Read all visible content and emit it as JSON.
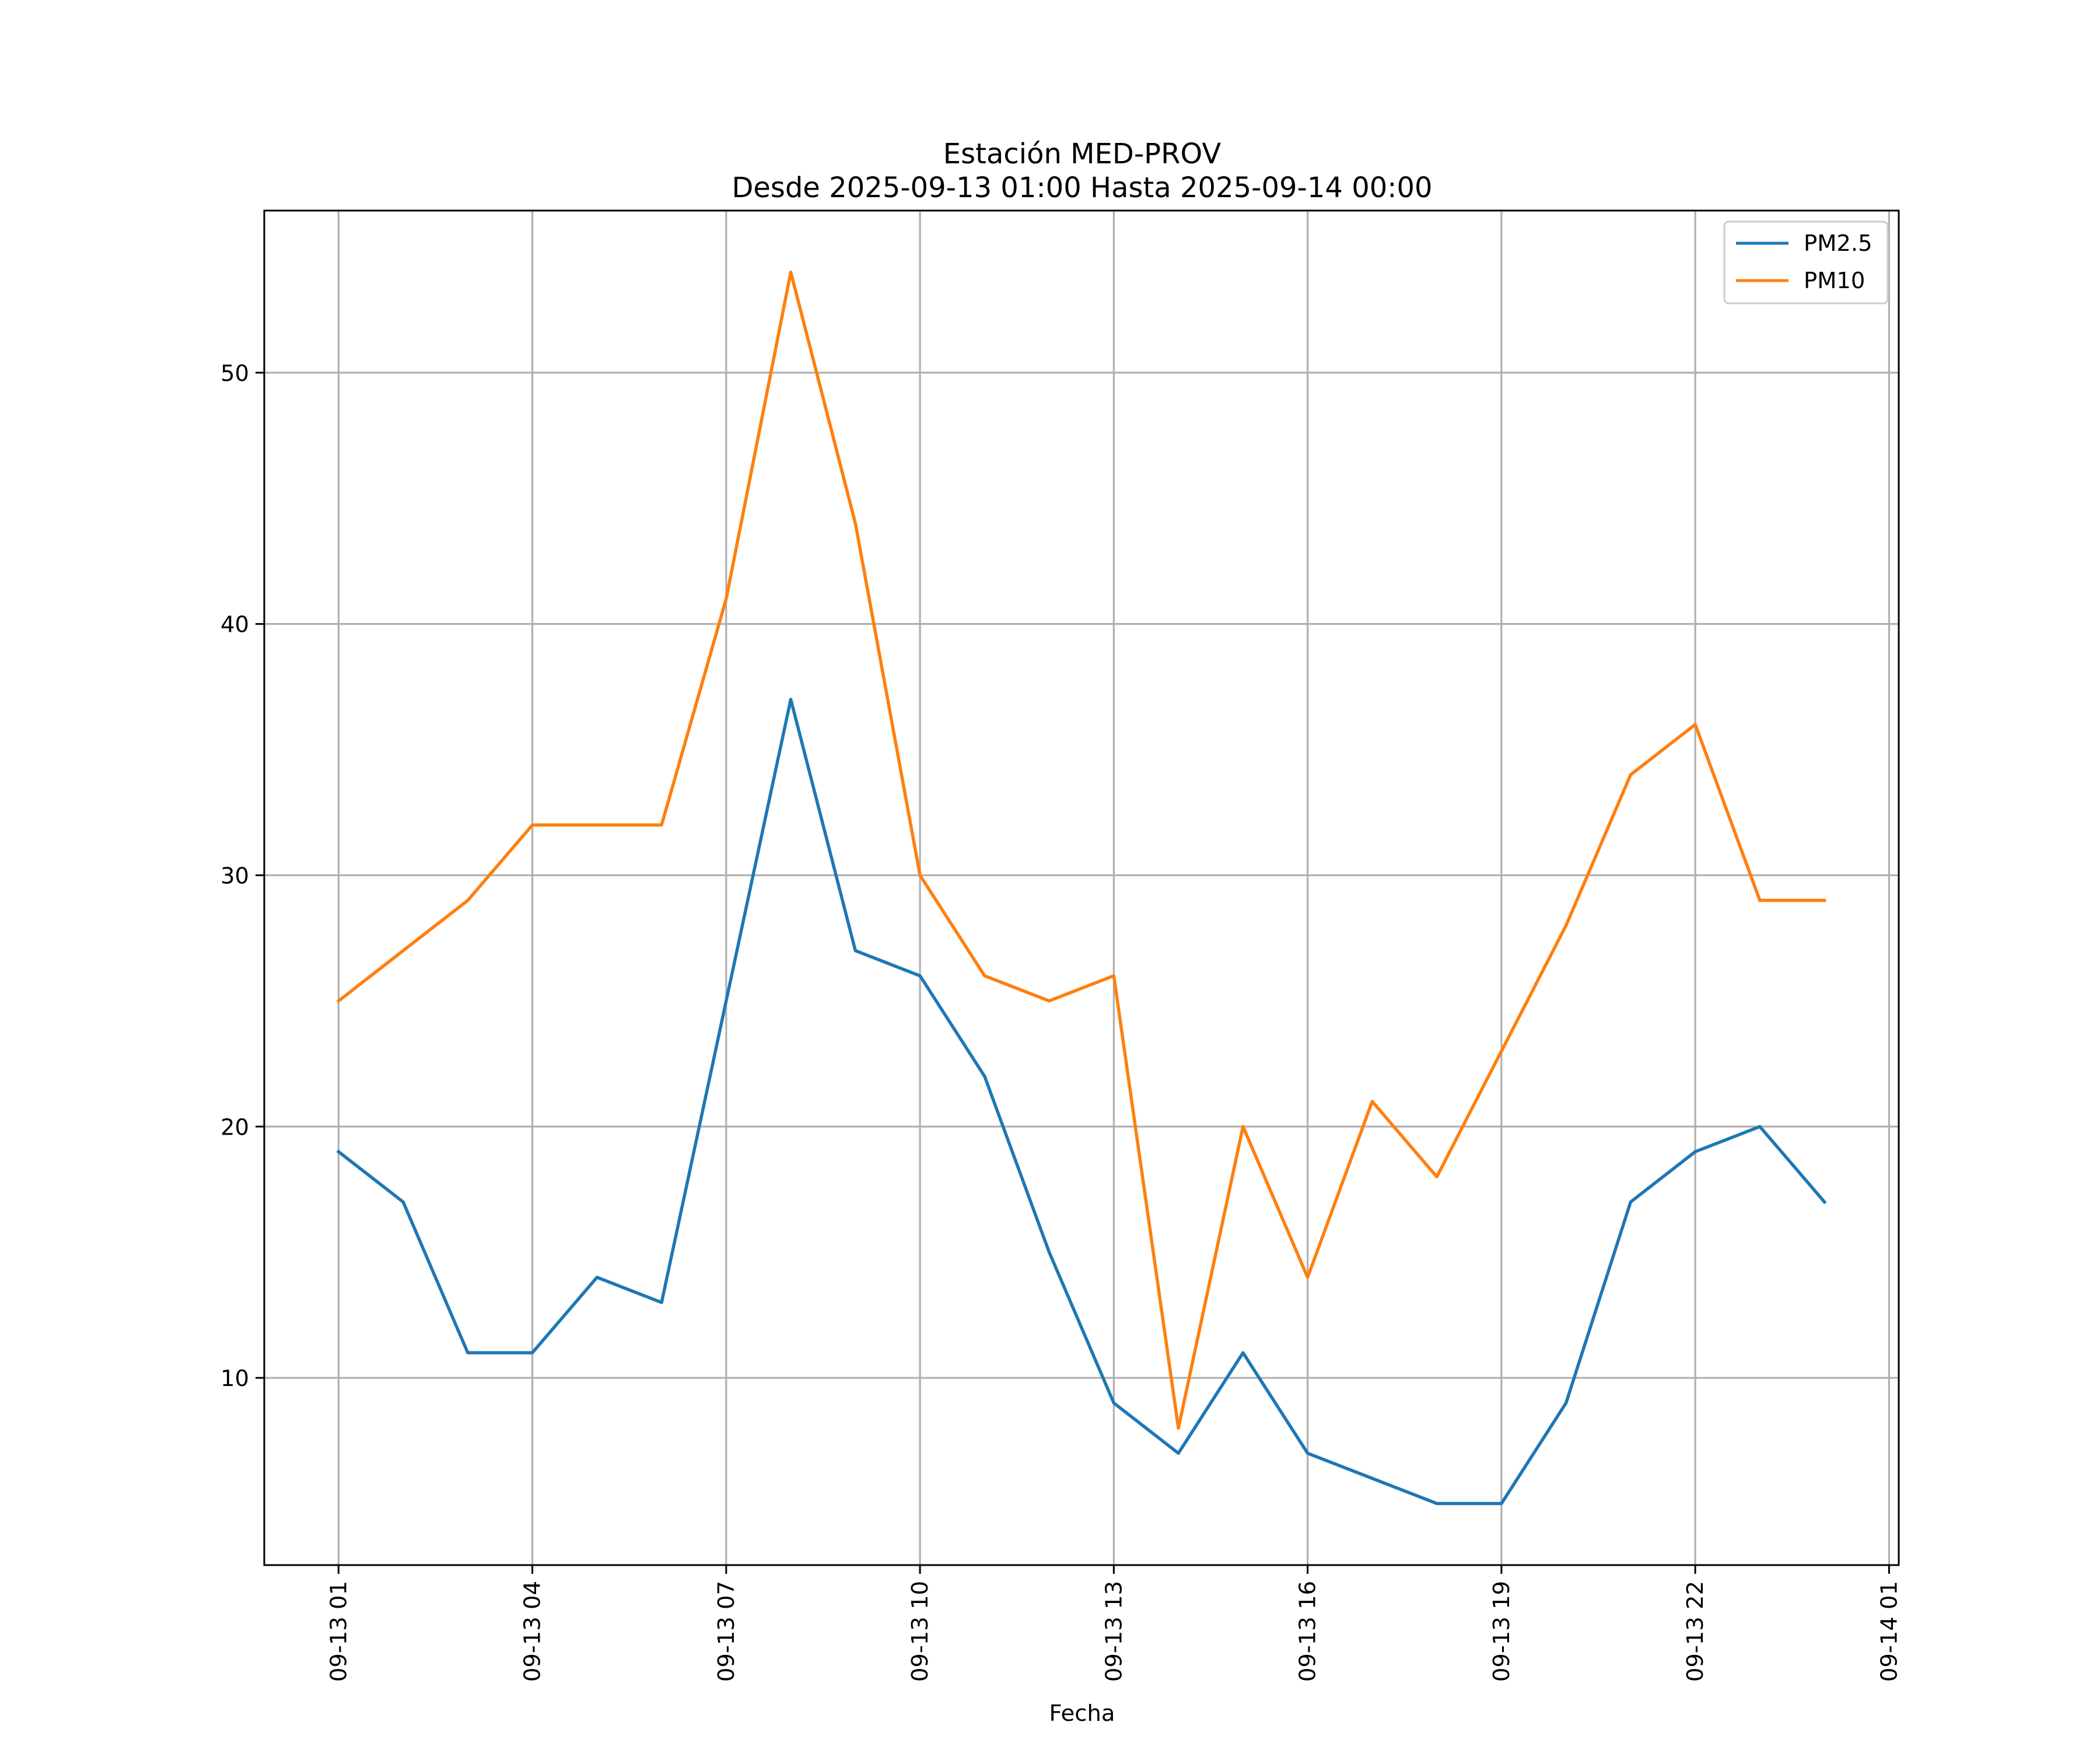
{
  "chart_data": {
    "type": "line",
    "title": "Estación MED-PROV",
    "subtitle": "Desde 2025-09-13 01:00 Hasta 2025-09-14 00:00",
    "xlabel": "Fecha",
    "ylabel": "",
    "grid": true,
    "legend_position": "top-right",
    "x": [
      "09-13 01:00",
      "09-13 02:00",
      "09-13 03:00",
      "09-13 04:00",
      "09-13 05:00",
      "09-13 06:00",
      "09-13 07:00",
      "09-13 08:00",
      "09-13 09:00",
      "09-13 10:00",
      "09-13 11:00",
      "09-13 12:00",
      "09-13 13:00",
      "09-13 14:00",
      "09-13 15:00",
      "09-13 16:00",
      "09-13 17:00",
      "09-13 18:00",
      "09-13 19:00",
      "09-13 20:00",
      "09-13 21:00",
      "09-13 22:00",
      "09-13 23:00",
      "09-14 00:00"
    ],
    "x_hours": [
      1,
      2,
      3,
      4,
      5,
      6,
      7,
      8,
      9,
      10,
      11,
      12,
      13,
      14,
      15,
      16,
      17,
      18,
      19,
      20,
      21,
      22,
      23,
      24
    ],
    "xlim": [
      -0.15,
      25.15
    ],
    "x_ticks": [
      {
        "hour": 1,
        "label": "09-13 01"
      },
      {
        "hour": 4,
        "label": "09-13 04"
      },
      {
        "hour": 7,
        "label": "09-13 07"
      },
      {
        "hour": 10,
        "label": "09-13 10"
      },
      {
        "hour": 13,
        "label": "09-13 13"
      },
      {
        "hour": 16,
        "label": "09-13 16"
      },
      {
        "hour": 19,
        "label": "09-13 19"
      },
      {
        "hour": 22,
        "label": "09-13 22"
      },
      {
        "hour": 25,
        "label": "09-14 01"
      }
    ],
    "ylim": [
      2.55,
      56.45
    ],
    "y_ticks": [
      10,
      20,
      30,
      40,
      50
    ],
    "series": [
      {
        "name": "PM2.5",
        "color": "#1f77b4",
        "values": [
          19,
          17,
          11,
          11,
          14,
          13,
          25,
          37,
          27,
          26,
          22,
          15,
          9,
          7,
          11,
          7,
          6,
          5,
          5,
          9,
          17,
          19,
          20,
          17
        ]
      },
      {
        "name": "PM10",
        "color": "#ff7f0e",
        "values": [
          25,
          27,
          29,
          32,
          32,
          32,
          41,
          54,
          44,
          30,
          26,
          25,
          26,
          8,
          20,
          14,
          21,
          18,
          23,
          28,
          34,
          36,
          29,
          29
        ]
      }
    ]
  }
}
